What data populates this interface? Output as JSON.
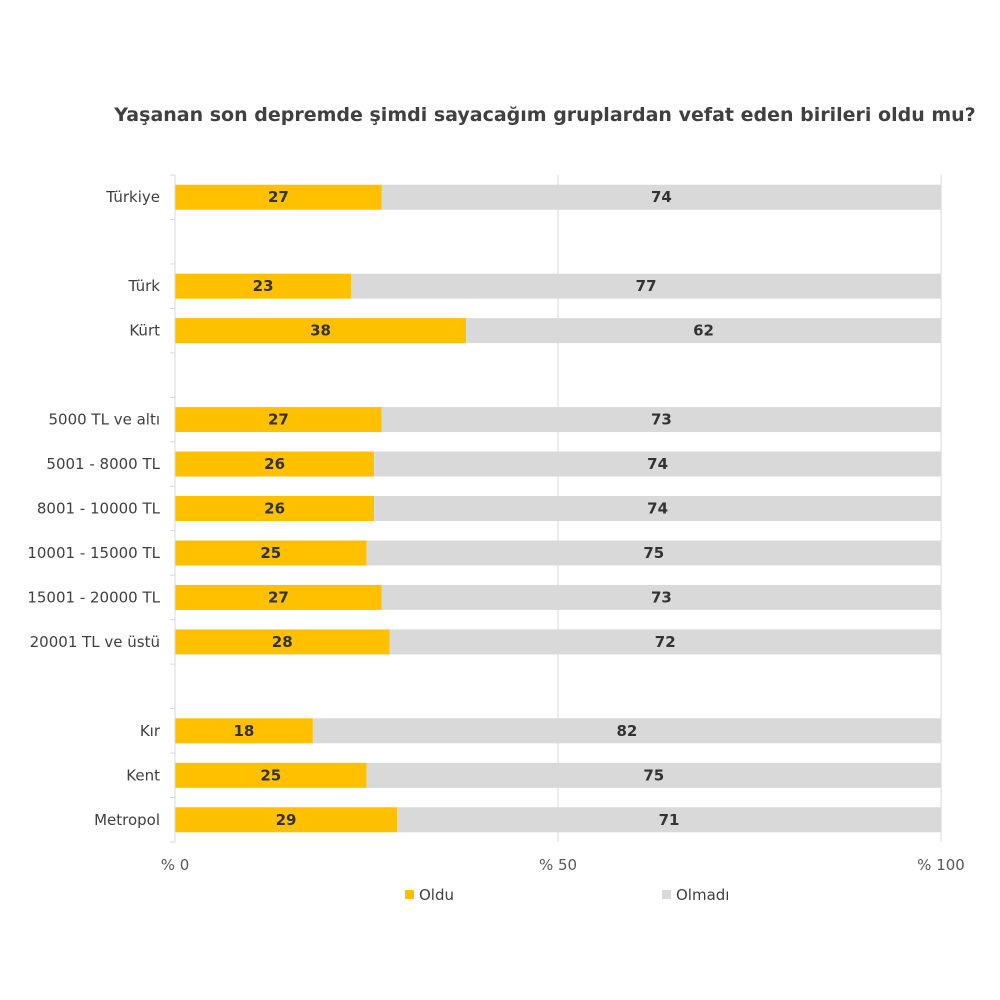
{
  "chart_data": {
    "type": "bar",
    "orientation": "horizontal",
    "stacked": true,
    "title": "Yaşanan son depremde şimdi sayacağım gruplardan vefat eden birileri oldu mu?",
    "categories": [
      "Türkiye",
      "",
      "Türk",
      "Kürt",
      "",
      "5000 TL ve altı",
      "5001 - 8000 TL",
      "8001 - 10000 TL",
      "10001 - 15000 TL",
      "15001 - 20000 TL",
      "20001 TL ve üstü",
      "",
      "Kır",
      "Kent",
      "Metropol"
    ],
    "series": [
      {
        "name": "Oldu",
        "color": "#FFC000",
        "values": [
          27,
          null,
          23,
          38,
          null,
          27,
          26,
          26,
          25,
          27,
          28,
          null,
          18,
          25,
          29
        ]
      },
      {
        "name": "Olmadı",
        "color": "#D9D9D9",
        "values": [
          74,
          null,
          77,
          62,
          null,
          73,
          74,
          74,
          75,
          73,
          72,
          null,
          82,
          75,
          71
        ]
      }
    ],
    "xlim": [
      0,
      100
    ],
    "xticks": [
      {
        "value": 0,
        "label": "% 0"
      },
      {
        "value": 50,
        "label": "% 50"
      },
      {
        "value": 100,
        "label": "% 100"
      }
    ],
    "legend_position": "bottom",
    "gridlines": true
  }
}
